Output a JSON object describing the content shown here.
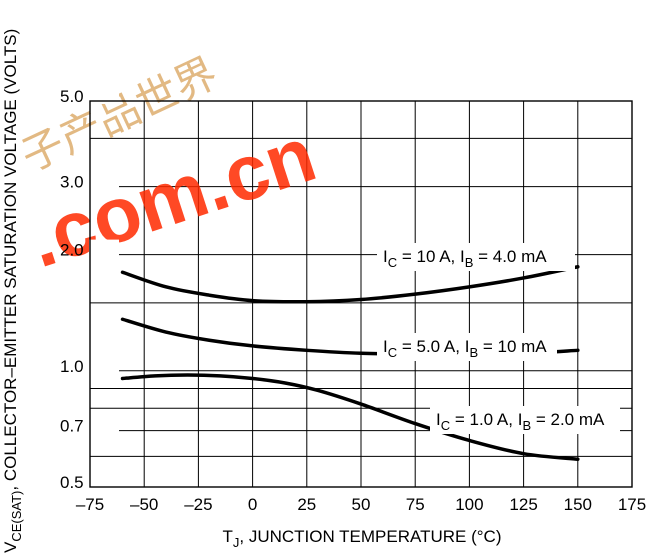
{
  "watermark": {
    "text": ".com.cn",
    "chars": "子产品世界"
  },
  "chart_data": {
    "type": "line",
    "xlabel": "T_J, JUNCTION TEMPERATURE (°C)",
    "ylabel": "VCE(SAT), COLLECTOR–EMITTER SATURATION VOLTAGE (VOLTS)",
    "xlim": [
      -75,
      175
    ],
    "ylim": [
      0.5,
      5.0
    ],
    "yscale": "log",
    "grid": true,
    "x_ticks": [
      -75,
      -50,
      -25,
      0,
      25,
      50,
      75,
      100,
      125,
      150,
      175
    ],
    "x_tick_labels": [
      "–75",
      "–50",
      "–25",
      "0",
      "25",
      "50",
      "75",
      "100",
      "125",
      "150",
      "175"
    ],
    "y_tick_labels": [
      {
        "value": 5.0,
        "label": "5.0"
      },
      {
        "value": 3.0,
        "label": "3.0"
      },
      {
        "value": 2.0,
        "label": "2.0"
      },
      {
        "value": 1.0,
        "label": "1.0"
      },
      {
        "value": 0.7,
        "label": "0.7"
      },
      {
        "value": 0.5,
        "label": "0.5"
      }
    ],
    "y_gridlines": [
      0.5,
      0.6,
      0.7,
      0.8,
      0.9,
      1.0,
      1.5,
      2.0,
      3.0,
      4.0,
      5.0
    ],
    "series": [
      {
        "name": "I_C = 10 A, I_B = 4.0 mA",
        "x": [
          -60,
          -40,
          -20,
          0,
          25,
          50,
          75,
          100,
          125,
          150
        ],
        "y": [
          1.8,
          1.65,
          1.57,
          1.52,
          1.51,
          1.53,
          1.58,
          1.65,
          1.74,
          1.86
        ]
      },
      {
        "name": "I_C = 5.0 A, I_B = 10 mA",
        "x": [
          -60,
          -40,
          -20,
          0,
          25,
          50,
          75,
          100,
          125,
          150
        ],
        "y": [
          1.36,
          1.26,
          1.2,
          1.16,
          1.13,
          1.11,
          1.105,
          1.105,
          1.11,
          1.13
        ]
      },
      {
        "name": "I_C = 1.0 A, I_B = 2.0 mA",
        "x": [
          -60,
          -45,
          -30,
          -15,
          0,
          15,
          30,
          50,
          75,
          100,
          125,
          150
        ],
        "y": [
          0.955,
          0.97,
          0.975,
          0.97,
          0.955,
          0.93,
          0.89,
          0.82,
          0.73,
          0.66,
          0.61,
          0.59
        ]
      }
    ],
    "series_labels": [
      {
        "main": "I",
        "sub1": "C",
        "mid": " = 10 A, I",
        "sub2": "B",
        "tail": " = 4.0 mA"
      },
      {
        "main": "I",
        "sub1": "C",
        "mid": " = 5.0 A, I",
        "sub2": "B",
        "tail": " = 10 mA"
      },
      {
        "main": "I",
        "sub1": "C",
        "mid": " = 1.0 A, I",
        "sub2": "B",
        "tail": " = 2.0 mA"
      }
    ],
    "axis_label_parts": {
      "x_main": "T",
      "x_sub": "J",
      "x_rest": ", JUNCTION TEMPERATURE (°C)",
      "y_main": "V",
      "y_sub": "CE(SAT)",
      "y_rest": ", COLLECTOR–EMITTER SATURATION VOLTAGE (VOLTS)"
    }
  }
}
